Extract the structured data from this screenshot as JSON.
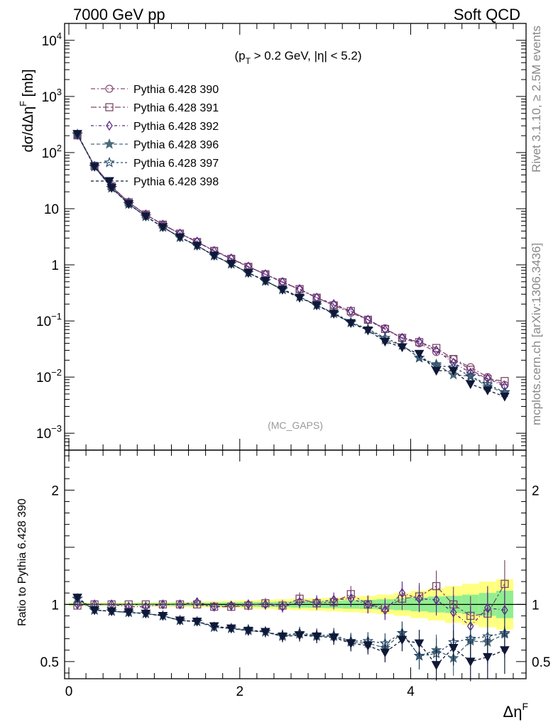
{
  "header": {
    "left": "7000 GeV pp",
    "right": "Soft QCD"
  },
  "side": {
    "top": "Rivet 3.1.10, ≥ 2.5M events",
    "bottom": "mcplots.cern.ch [arXiv:1306.3436]"
  },
  "colors": {
    "band_inner": "#90ee90",
    "band_outer": "#ffff80",
    "ref_line": "#000000"
  },
  "chart_data": [
    {
      "type": "line",
      "scale": "log",
      "annotation": "(pT > 0.2 GeV, |η| < 5.2)",
      "watermark": "(MC_GAPS)",
      "ylabel": "dσ/dΔηF [mb]",
      "ylim": [
        0.0005,
        20000
      ],
      "xlim": [
        -0.05,
        5.35
      ],
      "y_ticks": [
        "10^-3",
        "10^-2",
        "10^-1",
        "1",
        "10",
        "10^2",
        "10^3",
        "10^4"
      ],
      "legend_position": "top-left",
      "x": [
        0.1,
        0.3,
        0.5,
        0.7,
        0.9,
        1.1,
        1.3,
        1.5,
        1.7,
        1.9,
        2.1,
        2.3,
        2.5,
        2.7,
        2.9,
        3.1,
        3.3,
        3.5,
        3.7,
        3.9,
        4.1,
        4.3,
        4.5,
        4.7,
        4.9,
        5.1
      ],
      "series": [
        {
          "name": "Pythia 6.428 390",
          "color": "#8a4a7a",
          "marker": "circle-open",
          "dash": "6,3,2,3",
          "values": [
            205,
            58,
            25,
            13,
            7.9,
            5.2,
            3.6,
            2.55,
            1.8,
            1.3,
            0.93,
            0.68,
            0.5,
            0.36,
            0.26,
            0.19,
            0.14,
            0.105,
            0.074,
            0.049,
            0.04,
            0.028,
            0.021,
            0.015,
            0.01,
            0.0072
          ]
        },
        {
          "name": "Pythia 6.428 391",
          "color": "#7a4a66",
          "marker": "square-open",
          "dash": "8,3,3,3",
          "values": [
            203,
            58,
            25,
            13,
            7.9,
            5.2,
            3.6,
            2.55,
            1.77,
            1.28,
            0.92,
            0.68,
            0.49,
            0.37,
            0.26,
            0.19,
            0.15,
            0.105,
            0.072,
            0.05,
            0.042,
            0.033,
            0.021,
            0.0135,
            0.0092,
            0.0085
          ]
        },
        {
          "name": "Pythia 6.428 392",
          "color": "#5a2a8a",
          "marker": "diamond-open",
          "dash": "4,3,1,3",
          "values": [
            206,
            58,
            25,
            13,
            7.9,
            5.2,
            3.6,
            2.6,
            1.75,
            1.3,
            0.93,
            0.68,
            0.49,
            0.37,
            0.26,
            0.2,
            0.15,
            0.105,
            0.07,
            0.05,
            0.043,
            0.03,
            0.018,
            0.012,
            0.0095,
            0.0068
          ]
        },
        {
          "name": "Pythia 6.428 396",
          "color": "#4a6a7a",
          "marker": "star-filled",
          "dash": "5,3",
          "values": [
            210,
            56,
            23.5,
            12.1,
            7.3,
            4.7,
            3.1,
            2.2,
            1.46,
            1.04,
            0.72,
            0.52,
            0.36,
            0.27,
            0.19,
            0.135,
            0.093,
            0.071,
            0.046,
            0.037,
            0.022,
            0.017,
            0.011,
            0.0104,
            0.0068,
            0.0053
          ]
        },
        {
          "name": "Pythia 6.428 397",
          "color": "#2a4a6a",
          "marker": "star-open",
          "dash": "3,3",
          "values": [
            212,
            56,
            23.5,
            12.1,
            7.3,
            4.7,
            3.1,
            2.2,
            1.45,
            1.04,
            0.72,
            0.51,
            0.37,
            0.27,
            0.19,
            0.14,
            0.095,
            0.072,
            0.05,
            0.037,
            0.022,
            0.016,
            0.015,
            0.0103,
            0.0074,
            0.0054
          ]
        },
        {
          "name": "Pythia 6.428 398",
          "color": "#101838",
          "marker": "triangle-down-filled",
          "dash": "4,3",
          "values": [
            215,
            56,
            23.5,
            12.1,
            7.3,
            4.7,
            3.1,
            2.2,
            1.46,
            1.04,
            0.72,
            0.52,
            0.36,
            0.26,
            0.19,
            0.135,
            0.092,
            0.068,
            0.043,
            0.034,
            0.026,
            0.013,
            0.013,
            0.0075,
            0.0058,
            0.0045
          ]
        }
      ]
    },
    {
      "type": "line",
      "ylabel": "Ratio to Pythia 6.428 390",
      "xlabel": "ΔηF",
      "ylim": [
        0.35,
        2.35
      ],
      "xlim": [
        -0.05,
        5.35
      ],
      "y_ticks": [
        "0.5",
        "1",
        "2"
      ],
      "x_ticks": [
        "0",
        "2",
        "4"
      ],
      "reference": 1.0,
      "band_inner_halfwidth": [
        0.01,
        0.01,
        0.01,
        0.01,
        0.012,
        0.012,
        0.014,
        0.015,
        0.016,
        0.018,
        0.02,
        0.022,
        0.024,
        0.028,
        0.03,
        0.033,
        0.037,
        0.04,
        0.045,
        0.05,
        0.06,
        0.07,
        0.075,
        0.085,
        0.1,
        0.12
      ],
      "band_outer_halfwidth": [
        0.015,
        0.015,
        0.015,
        0.016,
        0.018,
        0.02,
        0.022,
        0.025,
        0.028,
        0.032,
        0.036,
        0.04,
        0.045,
        0.05,
        0.055,
        0.06,
        0.068,
        0.075,
        0.085,
        0.1,
        0.12,
        0.14,
        0.16,
        0.18,
        0.2,
        0.22
      ],
      "series": [
        {
          "name": "Pythia 6.428 391",
          "values": [
            0.99,
            1.0,
            1.0,
            1.0,
            1.0,
            1.0,
            1.0,
            1.0,
            0.98,
            0.98,
            0.99,
            1.01,
            0.99,
            1.05,
            1.01,
            1.02,
            1.09,
            1.0,
            0.97,
            1.05,
            1.07,
            1.16,
            1.0,
            0.9,
            0.92,
            1.18
          ]
        },
        {
          "name": "Pythia 6.428 392",
          "values": [
            1.0,
            1.0,
            1.0,
            0.98,
            0.98,
            1.0,
            1.0,
            1.02,
            0.98,
            0.99,
            1.0,
            1.0,
            0.98,
            1.02,
            1.02,
            1.04,
            1.05,
            1.0,
            0.95,
            1.1,
            1.05,
            1.04,
            0.93,
            0.81,
            0.97,
            0.95
          ]
        },
        {
          "name": "Pythia 6.428 396",
          "values": [
            1.05,
            0.95,
            0.94,
            0.93,
            0.92,
            0.9,
            0.86,
            0.85,
            0.8,
            0.79,
            0.77,
            0.76,
            0.72,
            0.74,
            0.72,
            0.72,
            0.67,
            0.66,
            0.62,
            0.75,
            0.55,
            0.6,
            0.53,
            0.68,
            0.67,
            0.74
          ]
        },
        {
          "name": "Pythia 6.428 397",
          "values": [
            1.05,
            0.95,
            0.94,
            0.93,
            0.92,
            0.9,
            0.86,
            0.85,
            0.8,
            0.79,
            0.78,
            0.76,
            0.73,
            0.75,
            0.73,
            0.73,
            0.68,
            0.68,
            0.66,
            0.75,
            0.55,
            0.57,
            0.67,
            0.7,
            0.72,
            0.75
          ]
        },
        {
          "name": "Pythia 6.428 398",
          "values": [
            1.06,
            0.95,
            0.94,
            0.93,
            0.92,
            0.9,
            0.86,
            0.85,
            0.81,
            0.79,
            0.77,
            0.76,
            0.72,
            0.73,
            0.72,
            0.71,
            0.66,
            0.64,
            0.58,
            0.69,
            0.66,
            0.47,
            0.62,
            0.5,
            0.54,
            0.6
          ]
        }
      ]
    }
  ]
}
